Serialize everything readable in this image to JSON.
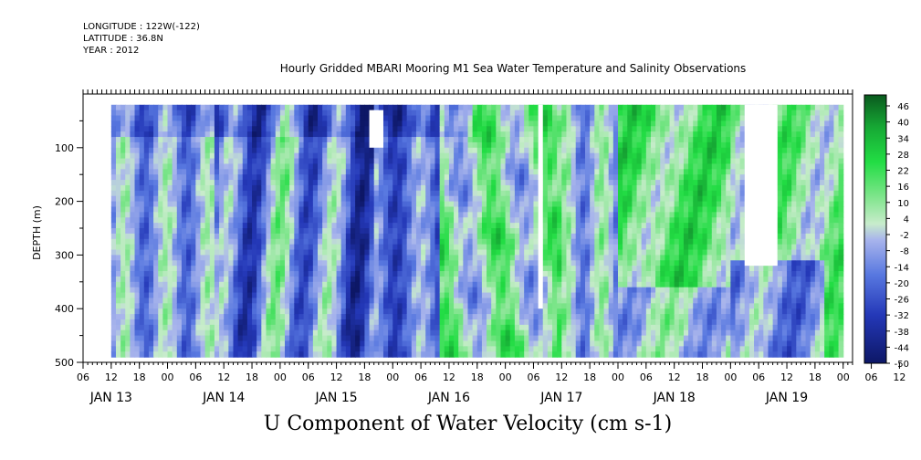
{
  "header": {
    "longitude": "LONGITUDE : 122W(-122)",
    "latitude": "LATITUDE : 36.8N",
    "year": "YEAR : 2012"
  },
  "title": "Hourly Gridded MBARI Mooring M1 Sea Water Temperature and Salinity Observations",
  "footer": "U Component of Water Velocity (cm s-1)",
  "chart_data": {
    "type": "heatmap",
    "title": "Hourly Gridded MBARI Mooring M1 Sea Water Temperature and Salinity Observations",
    "variable": "U Component of Water Velocity (cm s-1)",
    "xlabel": "",
    "ylabel": "DEPTH (m)",
    "ylim": [
      500,
      0
    ],
    "y_reversed": true,
    "y_ticks": [
      100,
      200,
      300,
      400,
      500
    ],
    "x_range_hours": [
      "2012-01-13T06:00",
      "2012-01-20T02:00"
    ],
    "x_hour_ticks": [
      "06",
      "12",
      "18",
      "00",
      "06",
      "12",
      "18",
      "00",
      "06",
      "12",
      "18",
      "00",
      "06",
      "12",
      "18",
      "00",
      "06",
      "12",
      "18",
      "00",
      "06",
      "12",
      "18",
      "00",
      "06",
      "12",
      "18",
      "00",
      "06",
      "12",
      "18",
      "00"
    ],
    "x_day_labels": [
      "JAN 13",
      "JAN 14",
      "JAN 15",
      "JAN 16",
      "JAN 17",
      "JAN 18",
      "JAN 19"
    ],
    "data_extent": {
      "start": "2012-01-13T12:00",
      "end": "2012-01-20T00:00",
      "depth_min": 20,
      "depth_max": 490
    },
    "colorbar": {
      "labels": [
        46,
        40,
        34,
        28,
        22,
        16,
        10,
        4,
        -2,
        -8,
        -14,
        -20,
        -26,
        -32,
        -38,
        -44,
        -50
      ],
      "range": [
        -50,
        50
      ],
      "colors": {
        "strong_negative": "#0d1766",
        "negative": "#3050d8",
        "weak_negative": "#a8b4ec",
        "weak_positive": "#9ee6a8",
        "positive": "#22dd44",
        "strong_positive": "#0a5a1e"
      }
    },
    "missing_data": [
      {
        "t0": "2012-01-15T19:00",
        "t1": "2012-01-15T22:00",
        "depth0": 30,
        "depth1": 100
      },
      {
        "t0": "2012-01-17T07:00",
        "t1": "2012-01-17T08:00",
        "depth0": 20,
        "depth1": 400
      },
      {
        "t0": "2012-01-19T03:00",
        "t1": "2012-01-19T10:00",
        "depth0": 20,
        "depth1": 320
      }
    ],
    "grid": false
  }
}
